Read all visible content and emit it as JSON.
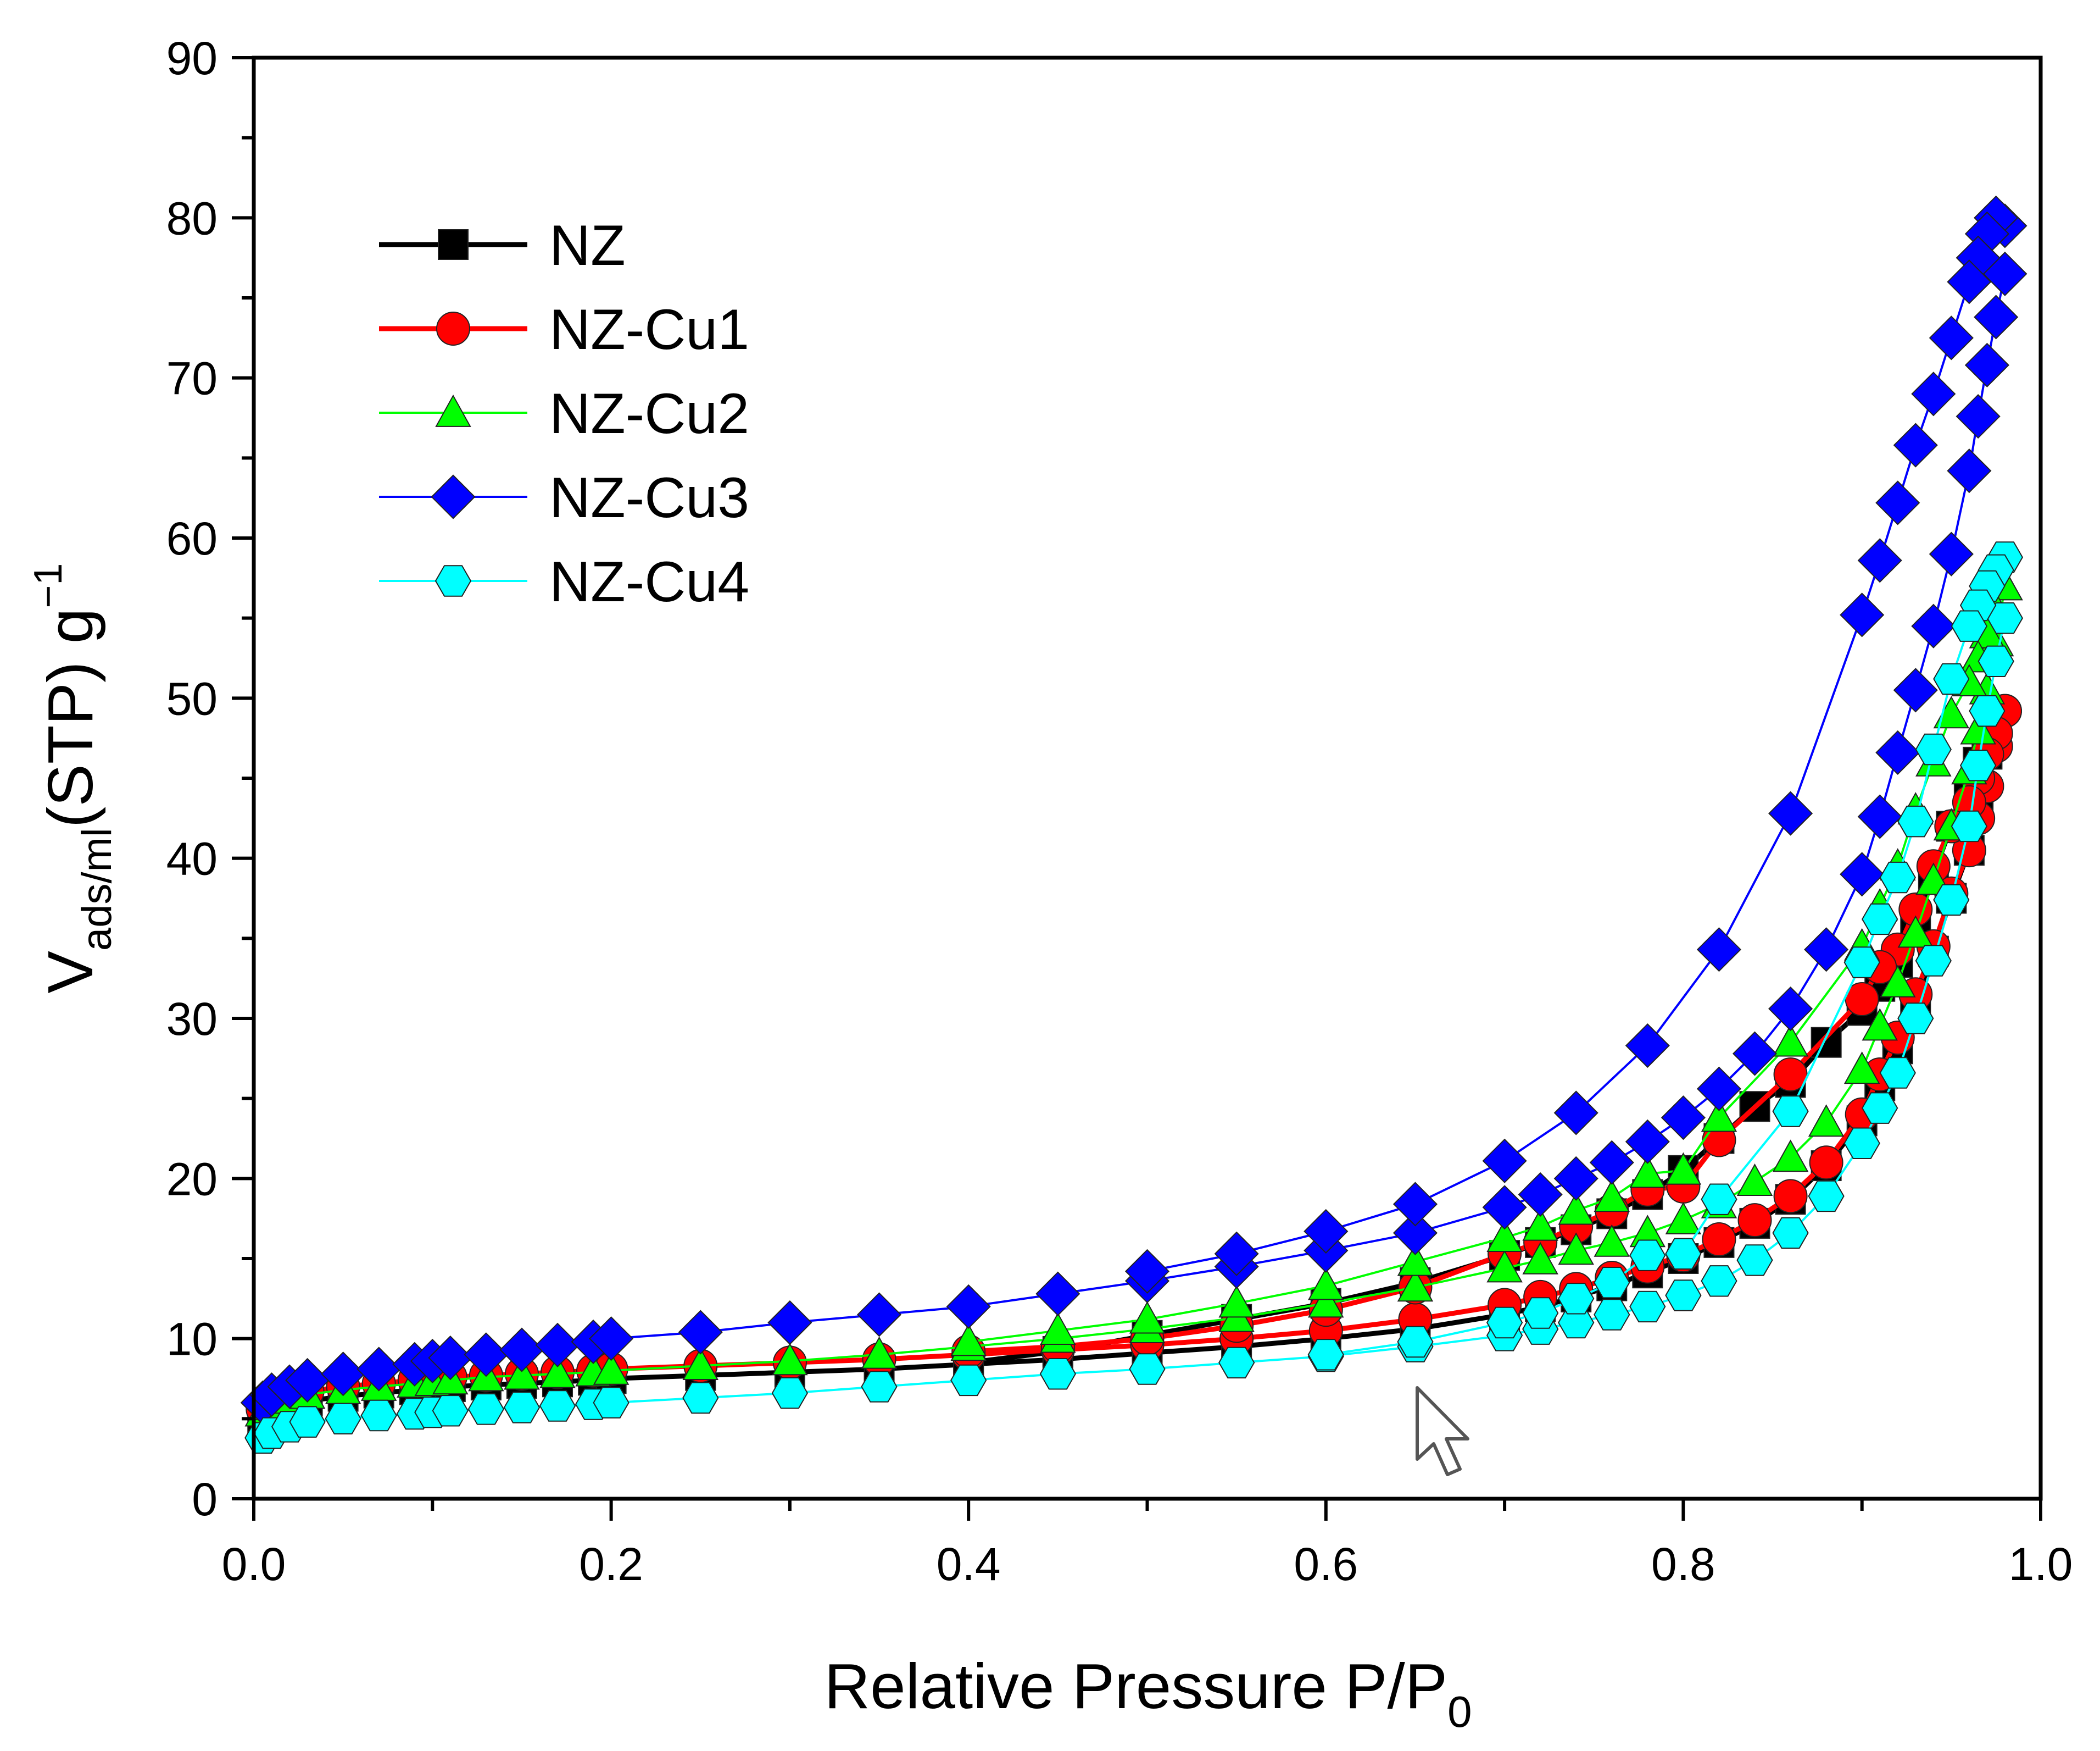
{
  "chart_data": {
    "type": "line",
    "title": "",
    "xlabel": {
      "main": "Relative Pressure P/P",
      "sub": "0"
    },
    "ylabel": {
      "main": "V",
      "sub": "ads/ml",
      "rest": "(STP) g",
      "sup": "−1"
    },
    "xlim": [
      0.0,
      1.0
    ],
    "ylim": [
      0,
      90
    ],
    "x_ticks": [
      "0.0",
      "0.2",
      "0.4",
      "0.6",
      "0.8",
      "1.0"
    ],
    "y_ticks": [
      "0",
      "10",
      "20",
      "30",
      "40",
      "50",
      "60",
      "70",
      "80",
      "90"
    ],
    "grid": false,
    "legend_position": "top-left",
    "series": [
      {
        "name": "NZ",
        "color": "#000000",
        "marker": "square",
        "adsorption": {
          "x": [
            0.005,
            0.01,
            0.02,
            0.03,
            0.05,
            0.07,
            0.09,
            0.1,
            0.11,
            0.13,
            0.15,
            0.17,
            0.19,
            0.2,
            0.25,
            0.3,
            0.35,
            0.4,
            0.45,
            0.5,
            0.55,
            0.6,
            0.65,
            0.7,
            0.72,
            0.74,
            0.76,
            0.78,
            0.8,
            0.82,
            0.84,
            0.86,
            0.88,
            0.9,
            0.91,
            0.92,
            0.93,
            0.94,
            0.95,
            0.96,
            0.965,
            0.97,
            0.975
          ],
          "y": [
            5.0,
            5.4,
            5.8,
            6.1,
            6.4,
            6.6,
            6.8,
            6.9,
            7.0,
            7.1,
            7.2,
            7.3,
            7.4,
            7.5,
            7.7,
            7.9,
            8.1,
            8.4,
            8.7,
            9.1,
            9.5,
            10.0,
            10.6,
            11.5,
            12.0,
            12.6,
            13.3,
            14.1,
            15.0,
            16.0,
            17.2,
            18.7,
            20.8,
            23.6,
            25.8,
            28.1,
            31.0,
            34.2,
            37.5,
            40.5,
            43.5,
            46.5,
            48.5
          ]
        },
        "desorption": {
          "x": [
            0.975,
            0.97,
            0.965,
            0.96,
            0.95,
            0.94,
            0.93,
            0.92,
            0.91,
            0.9,
            0.88,
            0.86,
            0.84,
            0.82,
            0.8,
            0.78,
            0.76,
            0.74,
            0.72,
            0.7,
            0.65,
            0.6,
            0.55,
            0.5,
            0.45,
            0.4
          ],
          "y": [
            48.5,
            47.5,
            46.0,
            44.0,
            42.0,
            39.0,
            36.0,
            33.5,
            32.0,
            30.5,
            28.5,
            26.0,
            24.5,
            22.5,
            20.5,
            19.0,
            17.8,
            16.8,
            16.0,
            15.2,
            13.5,
            12.2,
            11.2,
            10.2,
            9.2,
            8.5
          ]
        }
      },
      {
        "name": "NZ-Cu1",
        "color": "#ff0000",
        "marker": "circle",
        "adsorption": {
          "x": [
            0.005,
            0.01,
            0.02,
            0.03,
            0.05,
            0.07,
            0.09,
            0.1,
            0.11,
            0.13,
            0.15,
            0.17,
            0.19,
            0.2,
            0.25,
            0.3,
            0.35,
            0.4,
            0.45,
            0.5,
            0.55,
            0.6,
            0.65,
            0.7,
            0.72,
            0.74,
            0.76,
            0.78,
            0.8,
            0.82,
            0.84,
            0.86,
            0.88,
            0.9,
            0.91,
            0.92,
            0.93,
            0.94,
            0.95,
            0.96,
            0.965,
            0.97,
            0.975,
            0.98
          ],
          "y": [
            5.6,
            6.0,
            6.4,
            6.7,
            7.0,
            7.2,
            7.4,
            7.5,
            7.6,
            7.7,
            7.8,
            7.9,
            8.0,
            8.1,
            8.3,
            8.5,
            8.7,
            9.0,
            9.3,
            9.6,
            10.0,
            10.5,
            11.2,
            12.1,
            12.6,
            13.1,
            13.8,
            14.5,
            15.2,
            16.2,
            17.4,
            18.9,
            21.0,
            24.0,
            26.5,
            28.8,
            31.5,
            34.5,
            37.8,
            40.5,
            42.5,
            44.5,
            47.0,
            49.2
          ]
        },
        "desorption": {
          "x": [
            0.98,
            0.975,
            0.97,
            0.965,
            0.96,
            0.95,
            0.94,
            0.93,
            0.92,
            0.91,
            0.9,
            0.86,
            0.82,
            0.8,
            0.78,
            0.76,
            0.74,
            0.72,
            0.7,
            0.65,
            0.6,
            0.55,
            0.5,
            0.45,
            0.4
          ],
          "y": [
            49.2,
            47.8,
            46.5,
            45.0,
            43.5,
            42.0,
            39.5,
            36.8,
            34.3,
            33.2,
            31.2,
            26.5,
            22.4,
            19.5,
            19.3,
            18.0,
            17.0,
            16.0,
            15.3,
            13.2,
            11.8,
            10.8,
            10.0,
            9.5,
            9.2
          ]
        }
      },
      {
        "name": "NZ-Cu2",
        "color": "#00ff00",
        "marker": "triangle",
        "adsorption": {
          "x": [
            0.005,
            0.01,
            0.02,
            0.03,
            0.05,
            0.07,
            0.09,
            0.1,
            0.11,
            0.13,
            0.15,
            0.17,
            0.19,
            0.2,
            0.25,
            0.3,
            0.35,
            0.4,
            0.45,
            0.5,
            0.55,
            0.6,
            0.65,
            0.7,
            0.72,
            0.74,
            0.76,
            0.78,
            0.8,
            0.82,
            0.84,
            0.86,
            0.88,
            0.9,
            0.91,
            0.92,
            0.93,
            0.94,
            0.95,
            0.96,
            0.965,
            0.97,
            0.975,
            0.98
          ],
          "y": [
            5.4,
            5.8,
            6.2,
            6.5,
            6.8,
            7.0,
            7.2,
            7.3,
            7.4,
            7.6,
            7.7,
            7.8,
            7.9,
            8.0,
            8.3,
            8.6,
            9.0,
            9.5,
            10.0,
            10.6,
            11.3,
            12.2,
            13.2,
            14.4,
            14.9,
            15.5,
            16.0,
            16.6,
            17.4,
            18.4,
            19.8,
            21.3,
            23.5,
            26.8,
            29.5,
            32.2,
            35.3,
            38.6,
            42.0,
            45.5,
            48.0,
            50.5,
            53.5,
            57.0
          ]
        },
        "desorption": {
          "x": [
            0.98,
            0.975,
            0.97,
            0.965,
            0.96,
            0.95,
            0.94,
            0.93,
            0.92,
            0.91,
            0.9,
            0.86,
            0.82,
            0.8,
            0.78,
            0.76,
            0.74,
            0.72,
            0.7,
            0.65,
            0.6,
            0.55,
            0.5,
            0.45,
            0.4
          ],
          "y": [
            57.0,
            55.5,
            54.0,
            52.5,
            51.0,
            49.0,
            46.0,
            43.0,
            39.5,
            37.0,
            34.5,
            28.5,
            23.8,
            20.5,
            20.3,
            18.8,
            18.0,
            17.0,
            16.3,
            14.8,
            13.3,
            12.2,
            11.2,
            10.5,
            9.8
          ]
        }
      },
      {
        "name": "NZ-Cu3",
        "color": "#0000ff",
        "marker": "diamond",
        "adsorption": {
          "x": [
            0.005,
            0.01,
            0.02,
            0.03,
            0.05,
            0.07,
            0.09,
            0.1,
            0.11,
            0.13,
            0.15,
            0.17,
            0.19,
            0.2,
            0.25,
            0.3,
            0.35,
            0.4,
            0.45,
            0.5,
            0.55,
            0.6,
            0.65,
            0.7,
            0.72,
            0.74,
            0.76,
            0.78,
            0.8,
            0.82,
            0.84,
            0.86,
            0.88,
            0.9,
            0.91,
            0.92,
            0.93,
            0.94,
            0.95,
            0.96,
            0.965,
            0.97,
            0.975,
            0.98
          ],
          "y": [
            6.0,
            6.5,
            7.0,
            7.4,
            7.8,
            8.1,
            8.4,
            8.6,
            8.8,
            9.0,
            9.3,
            9.6,
            9.8,
            10.0,
            10.4,
            11.0,
            11.5,
            12.0,
            12.8,
            13.6,
            14.5,
            15.5,
            16.6,
            18.2,
            19.0,
            20.0,
            21.0,
            22.3,
            23.8,
            25.6,
            27.8,
            30.6,
            34.3,
            39.0,
            42.6,
            46.6,
            50.5,
            54.5,
            59.0,
            64.2,
            67.6,
            70.8,
            73.8,
            76.5
          ]
        },
        "desorption": {
          "x": [
            0.98,
            0.975,
            0.97,
            0.965,
            0.96,
            0.95,
            0.94,
            0.93,
            0.92,
            0.91,
            0.9,
            0.86,
            0.82,
            0.78,
            0.74,
            0.7,
            0.65,
            0.6,
            0.55,
            0.5
          ],
          "y": [
            79.5,
            80.0,
            79.0,
            77.5,
            76.0,
            72.5,
            69.0,
            65.8,
            62.2,
            58.6,
            55.2,
            42.8,
            34.3,
            28.3,
            24.1,
            21.1,
            18.4,
            16.7,
            15.3,
            14.2
          ]
        }
      },
      {
        "name": "NZ-Cu4",
        "color": "#00ffff",
        "marker": "hexagon",
        "adsorption": {
          "x": [
            0.005,
            0.01,
            0.02,
            0.03,
            0.05,
            0.07,
            0.09,
            0.1,
            0.11,
            0.13,
            0.15,
            0.17,
            0.19,
            0.2,
            0.25,
            0.3,
            0.35,
            0.4,
            0.45,
            0.5,
            0.55,
            0.6,
            0.65,
            0.7,
            0.72,
            0.74,
            0.76,
            0.78,
            0.8,
            0.82,
            0.84,
            0.86,
            0.88,
            0.9,
            0.91,
            0.92,
            0.93,
            0.94,
            0.95,
            0.96,
            0.965,
            0.97,
            0.975,
            0.98
          ],
          "y": [
            3.8,
            4.1,
            4.5,
            4.8,
            5.0,
            5.2,
            5.3,
            5.4,
            5.5,
            5.6,
            5.7,
            5.8,
            5.9,
            6.0,
            6.3,
            6.6,
            7.0,
            7.4,
            7.8,
            8.1,
            8.5,
            8.9,
            9.5,
            10.2,
            10.6,
            11.0,
            11.5,
            12.0,
            12.7,
            13.6,
            14.9,
            16.6,
            18.9,
            22.2,
            24.4,
            26.6,
            30.0,
            33.6,
            37.4,
            42.0,
            45.8,
            49.2,
            52.3,
            55.0
          ]
        },
        "desorption": {
          "x": [
            0.98,
            0.975,
            0.97,
            0.965,
            0.96,
            0.95,
            0.94,
            0.93,
            0.92,
            0.91,
            0.9,
            0.86,
            0.82,
            0.8,
            0.78,
            0.76,
            0.74,
            0.72,
            0.7,
            0.65,
            0.6
          ],
          "y": [
            58.8,
            58.0,
            57.0,
            55.8,
            54.5,
            51.2,
            46.8,
            42.3,
            38.8,
            36.2,
            33.5,
            24.2,
            18.7,
            15.3,
            15.2,
            13.5,
            12.5,
            11.6,
            11.0,
            9.8,
            9.0
          ]
        }
      }
    ]
  }
}
